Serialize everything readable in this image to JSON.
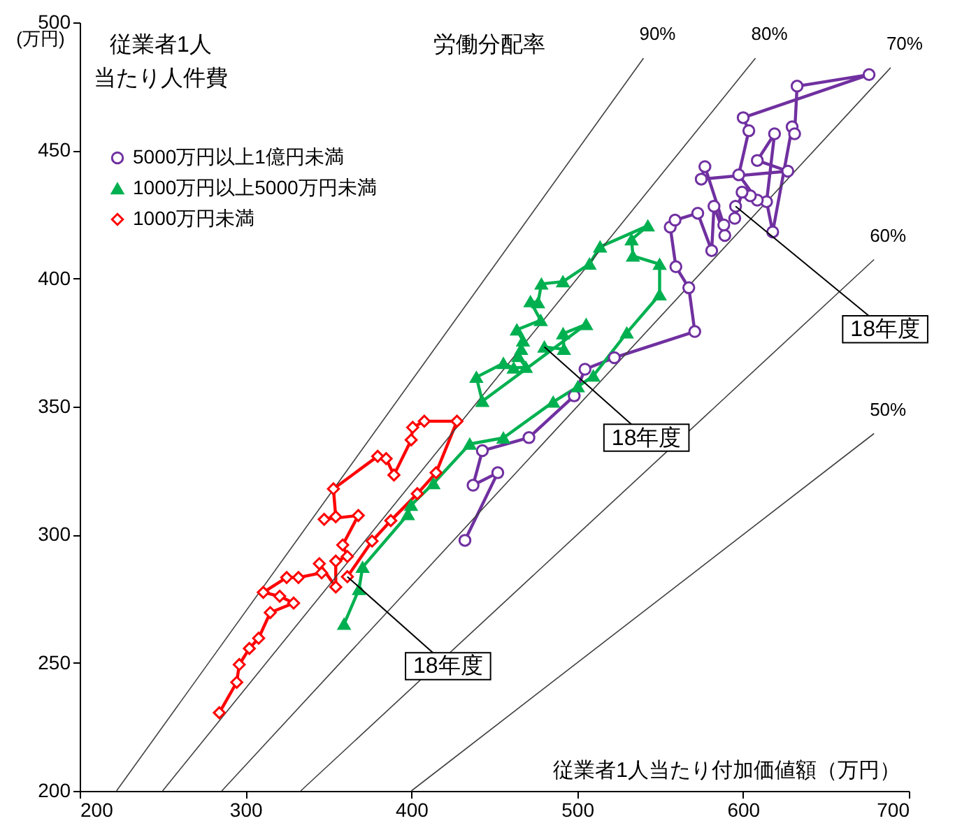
{
  "chart_data": {
    "type": "line",
    "ylabel": "従業者1人当たり人件費",
    "xlabel": "従業者1人当たり付加価値額（万円）",
    "xlim": [
      200,
      700
    ],
    "ylim": [
      200,
      500
    ],
    "xticks": [
      200,
      300,
      400,
      500,
      600,
      700
    ],
    "yticks": [
      200,
      250,
      300,
      350,
      400,
      450,
      500
    ],
    "grid": false,
    "legend": "top left",
    "annotations": [
      "(万円)",
      "労働分配率",
      {
        "text": "18年度",
        "x": 595.5,
        "y": 428.2
      },
      {
        "text": "18年度",
        "x": 480.2,
        "y": 373.3
      },
      {
        "text": "18年度",
        "x": 361.4,
        "y": 283.6
      }
    ],
    "series": [
      {
        "name": "5000万円以上1億円未満",
        "color": "#7030a0",
        "marker": "circle",
        "x": [
          432.3,
          452.1,
          437.2,
          442.8,
          470.9,
          498.2,
          504.7,
          522.4,
          570.9,
          567.3,
          559.5,
          556.1,
          559.0,
          572.7,
          581.1,
          582.5,
          589.0,
          588.4,
          577.0,
          574.8,
          627.0,
          608.6,
          619.0,
          614.2,
          617.9,
          629.6,
          631.1,
          632.6,
          676.0,
          600.1,
          603.5,
          597.4,
          608.6,
          604.4,
          599.4,
          595.0,
          595.5
        ],
        "values": [
          297.8,
          324.2,
          319.3,
          332.8,
          337.9,
          354.2,
          364.6,
          369.1,
          379.3,
          396.4,
          404.6,
          420.1,
          422.8,
          425.5,
          410.9,
          428.2,
          416.8,
          420.9,
          443.7,
          438.8,
          441.9,
          446.1,
          456.5,
          430.0,
          418.2,
          459.2,
          456.5,
          475.1,
          479.6,
          462.8,
          457.7,
          440.5,
          430.6,
          432.3,
          433.7,
          423.5,
          428.2
        ]
      },
      {
        "name": "1000万円以上5000万円未満",
        "color": "#00b050",
        "marker": "triangle",
        "x": [
          359.4,
          368.4,
          370.6,
          397.9,
          399.8,
          413.3,
          435.2,
          455.5,
          485.5,
          500.4,
          509.7,
          529.9,
          549.7,
          549.7,
          533.6,
          532.8,
          542.6,
          513.8,
          507.4,
          491.4,
          478.4,
          476.4,
          471.8,
          478.0,
          463.6,
          467.3,
          466.2,
          464.5,
          469.0,
          461.7,
          455.5,
          439.2,
          442.8,
          505.4,
          491.5,
          492.0,
          480.2
        ],
        "values": [
          265.1,
          278.7,
          287.3,
          307.9,
          311.5,
          320.0,
          335.4,
          337.8,
          351.8,
          357.8,
          362.0,
          378.8,
          393.7,
          405.6,
          408.8,
          415.2,
          420.6,
          412.4,
          405.7,
          398.8,
          397.9,
          390.6,
          391.0,
          383.7,
          380.0,
          375.7,
          372.4,
          369.6,
          365.4,
          365.1,
          366.9,
          361.5,
          352.1,
          382.1,
          378.5,
          372.4,
          373.3
        ]
      },
      {
        "name": "1000万円未満",
        "color": "#ff0000",
        "marker": "diamond",
        "x": [
          284.2,
          294.7,
          296.2,
          302.3,
          307.9,
          314.9,
          329.0,
          320.6,
          310.7,
          324.8,
          331.9,
          345.9,
          344.5,
          354.4,
          354.4,
          361.4,
          358.6,
          368.0,
          347.4,
          354.4,
          353.0,
          379.7,
          384.8,
          389.5,
          399.9,
          400.8,
          407.8,
          427.5,
          414.9,
          403.6,
          387.6,
          376.3,
          361.4
        ],
        "values": [
          230.5,
          242.4,
          249.3,
          255.6,
          259.6,
          269.6,
          273.3,
          276.0,
          277.5,
          283.3,
          283.3,
          285.1,
          288.7,
          279.6,
          289.7,
          291.5,
          296.0,
          307.5,
          306.0,
          307.0,
          317.9,
          330.6,
          329.7,
          323.3,
          337.0,
          341.9,
          344.3,
          344.3,
          324.2,
          316.0,
          305.5,
          297.5,
          283.6
        ]
      },
      {
        "name": "90%",
        "type": "line",
        "color": "#404040",
        "marker": "none",
        "x": [
          222.2,
          540
        ],
        "values": [
          200,
          486
        ]
      },
      {
        "name": "80%",
        "type": "line",
        "color": "#404040",
        "marker": "none",
        "x": [
          250,
          607.5
        ],
        "values": [
          200,
          486
        ]
      },
      {
        "name": "70%",
        "type": "line",
        "color": "#404040",
        "marker": "none",
        "x": [
          285.7,
          689
        ],
        "values": [
          200,
          482.3
        ]
      },
      {
        "name": "60%",
        "type": "line",
        "color": "#404040",
        "marker": "none",
        "x": [
          333.3,
          679
        ],
        "values": [
          200,
          407.4
        ]
      },
      {
        "name": "50%",
        "type": "line",
        "color": "#404040",
        "marker": "none",
        "x": [
          400,
          679
        ],
        "values": [
          200,
          339.5
        ]
      }
    ]
  }
}
